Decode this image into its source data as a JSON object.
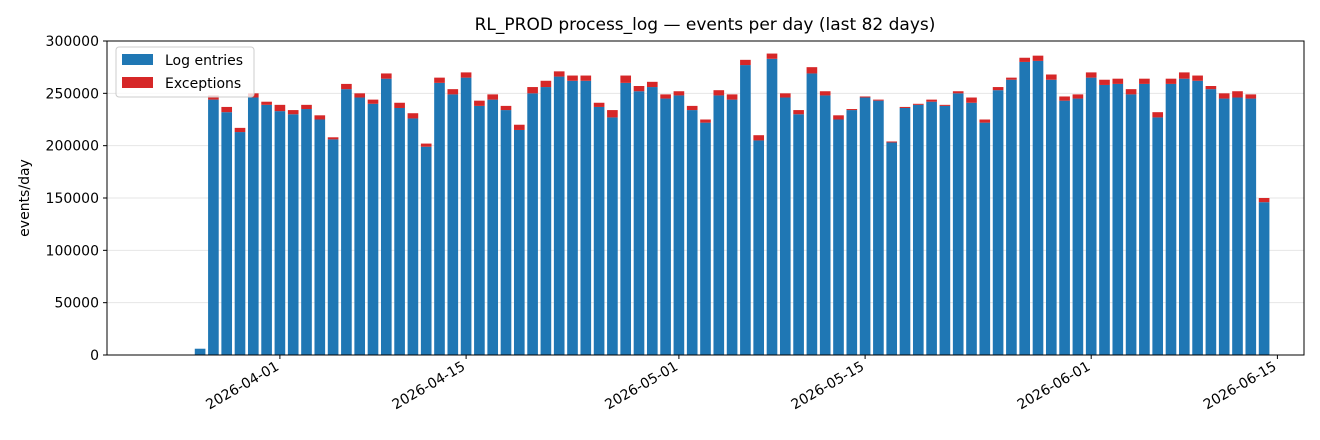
{
  "chart_data": {
    "type": "bar",
    "stacked": true,
    "title": "RL_PROD process_log — events per day (last 82 days)",
    "xlabel": "",
    "ylabel": "events/day",
    "ylim": [
      0,
      300000
    ],
    "y_ticks": [
      0,
      50000,
      100000,
      150000,
      200000,
      250000,
      300000
    ],
    "x_range": [
      "2026-03-19",
      "2026-06-17"
    ],
    "x_ticks": [
      "2026-04-01",
      "2026-04-15",
      "2026-05-01",
      "2026-05-15",
      "2026-06-01",
      "2026-06-15"
    ],
    "grid": "y",
    "legend": "top-left",
    "start_date": "2026-03-26",
    "series": [
      {
        "name": "Log entries",
        "color": "#1f77b4",
        "values": [
          6000,
          244000,
          232000,
          213000,
          246000,
          239000,
          233000,
          230000,
          235000,
          225000,
          206000,
          254000,
          246000,
          240000,
          264000,
          236000,
          226000,
          199000,
          260000,
          249000,
          265000,
          238000,
          244000,
          234000,
          215000,
          250000,
          256000,
          266000,
          262000,
          262000,
          237000,
          227000,
          260000,
          252000,
          256000,
          245000,
          248000,
          234000,
          222000,
          248000,
          244000,
          277000,
          205000,
          283000,
          246000,
          230000,
          269000,
          248000,
          225000,
          234000,
          246000,
          243000,
          203000,
          236000,
          239000,
          242000,
          238000,
          250000,
          241000,
          222000,
          253000,
          263000,
          280000,
          281000,
          263000,
          243000,
          245000,
          265000,
          258000,
          259000,
          249000,
          259000,
          227000,
          259000,
          264000,
          262000,
          254000,
          245000,
          246000,
          245000,
          146000
        ]
      },
      {
        "name": "Exceptions",
        "color": "#d62728",
        "values": [
          0,
          4000,
          5000,
          4000,
          4000,
          3000,
          6000,
          4000,
          4000,
          4000,
          2000,
          5000,
          4000,
          4000,
          5000,
          5000,
          5000,
          3000,
          5000,
          5000,
          5000,
          5000,
          5000,
          4000,
          5000,
          6000,
          6000,
          5000,
          5000,
          5000,
          4000,
          7000,
          7000,
          5000,
          5000,
          4000,
          4000,
          4000,
          3000,
          5000,
          5000,
          5000,
          5000,
          5000,
          4000,
          4000,
          6000,
          4000,
          4000,
          1000,
          1000,
          1000,
          1000,
          1000,
          1000,
          2000,
          1000,
          2000,
          5000,
          3000,
          3000,
          2000,
          4000,
          5000,
          5000,
          4000,
          4000,
          5000,
          5000,
          5000,
          5000,
          5000,
          5000,
          5000,
          6000,
          5000,
          3000,
          5000,
          6000,
          4000,
          4000
        ]
      }
    ]
  }
}
